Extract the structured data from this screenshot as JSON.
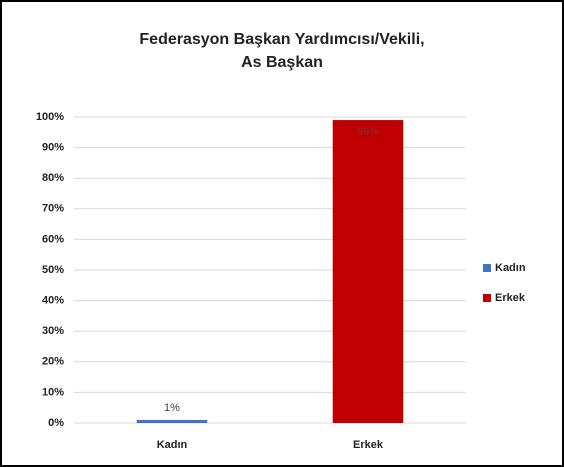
{
  "chart_data": {
    "type": "bar",
    "title": [
      "Federasyon Başkan Yardımcısı/Vekili,",
      "As Başkan"
    ],
    "categories": [
      "Kadın",
      "Erkek"
    ],
    "values": [
      1,
      99
    ],
    "value_labels": [
      "1%",
      "99%"
    ],
    "colors": [
      "#4472c4",
      "#c00000"
    ],
    "ylim": [
      0,
      100
    ],
    "yticks": [
      {
        "value": 0,
        "label": "0%"
      },
      {
        "value": 10,
        "label": "10%"
      },
      {
        "value": 20,
        "label": "20%"
      },
      {
        "value": 30,
        "label": "30%"
      },
      {
        "value": 40,
        "label": "40%"
      },
      {
        "value": 50,
        "label": "50%"
      },
      {
        "value": 60,
        "label": "60%"
      },
      {
        "value": 70,
        "label": "70%"
      },
      {
        "value": 80,
        "label": "80%"
      },
      {
        "value": 90,
        "label": "90%"
      },
      {
        "value": 100,
        "label": "100%"
      }
    ],
    "grid": true,
    "legend": "right"
  }
}
